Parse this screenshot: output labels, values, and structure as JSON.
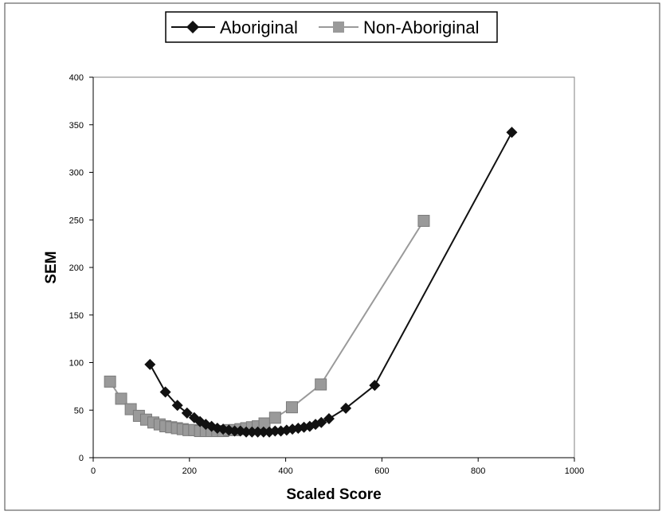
{
  "chart_data": {
    "type": "line",
    "xlabel": "Scaled Score",
    "ylabel": "SEM",
    "xlim": [
      0,
      1000
    ],
    "ylim": [
      0,
      400
    ],
    "xticks": [
      "0",
      "200",
      "400",
      "600",
      "800",
      "1000"
    ],
    "yticks": [
      "0",
      "50",
      "100",
      "150",
      "200",
      "250",
      "300",
      "350",
      "400"
    ],
    "grid": false,
    "legend_position": "top",
    "series": [
      {
        "name": "Aboriginal",
        "color": "#111111",
        "marker": "diamond",
        "points": [
          [
            118,
            98
          ],
          [
            150,
            69
          ],
          [
            175,
            55
          ],
          [
            195,
            47
          ],
          [
            210,
            42
          ],
          [
            222,
            38
          ],
          [
            234,
            35
          ],
          [
            246,
            33
          ],
          [
            258,
            31
          ],
          [
            270,
            30
          ],
          [
            282,
            29
          ],
          [
            294,
            28
          ],
          [
            306,
            28
          ],
          [
            318,
            27
          ],
          [
            330,
            27
          ],
          [
            342,
            27
          ],
          [
            354,
            27
          ],
          [
            366,
            27
          ],
          [
            378,
            28
          ],
          [
            390,
            28
          ],
          [
            402,
            29
          ],
          [
            414,
            30
          ],
          [
            426,
            31
          ],
          [
            438,
            32
          ],
          [
            450,
            33
          ],
          [
            462,
            35
          ],
          [
            474,
            37
          ],
          [
            490,
            41
          ],
          [
            525,
            52
          ],
          [
            585,
            76
          ],
          [
            870,
            342
          ]
        ]
      },
      {
        "name": "Non-Aboriginal",
        "color": "#9a9a9a",
        "marker": "square",
        "points": [
          [
            35,
            80
          ],
          [
            58,
            62
          ],
          [
            78,
            51
          ],
          [
            95,
            44
          ],
          [
            110,
            40
          ],
          [
            125,
            37
          ],
          [
            138,
            35
          ],
          [
            150,
            33
          ],
          [
            162,
            32
          ],
          [
            174,
            31
          ],
          [
            186,
            30
          ],
          [
            198,
            29
          ],
          [
            210,
            29
          ],
          [
            222,
            28
          ],
          [
            234,
            28
          ],
          [
            246,
            28
          ],
          [
            258,
            28
          ],
          [
            270,
            28
          ],
          [
            282,
            29
          ],
          [
            294,
            29
          ],
          [
            306,
            30
          ],
          [
            318,
            31
          ],
          [
            330,
            32
          ],
          [
            342,
            33
          ],
          [
            356,
            36
          ],
          [
            378,
            42
          ],
          [
            413,
            53
          ],
          [
            473,
            77
          ],
          [
            687,
            249
          ]
        ]
      }
    ]
  }
}
